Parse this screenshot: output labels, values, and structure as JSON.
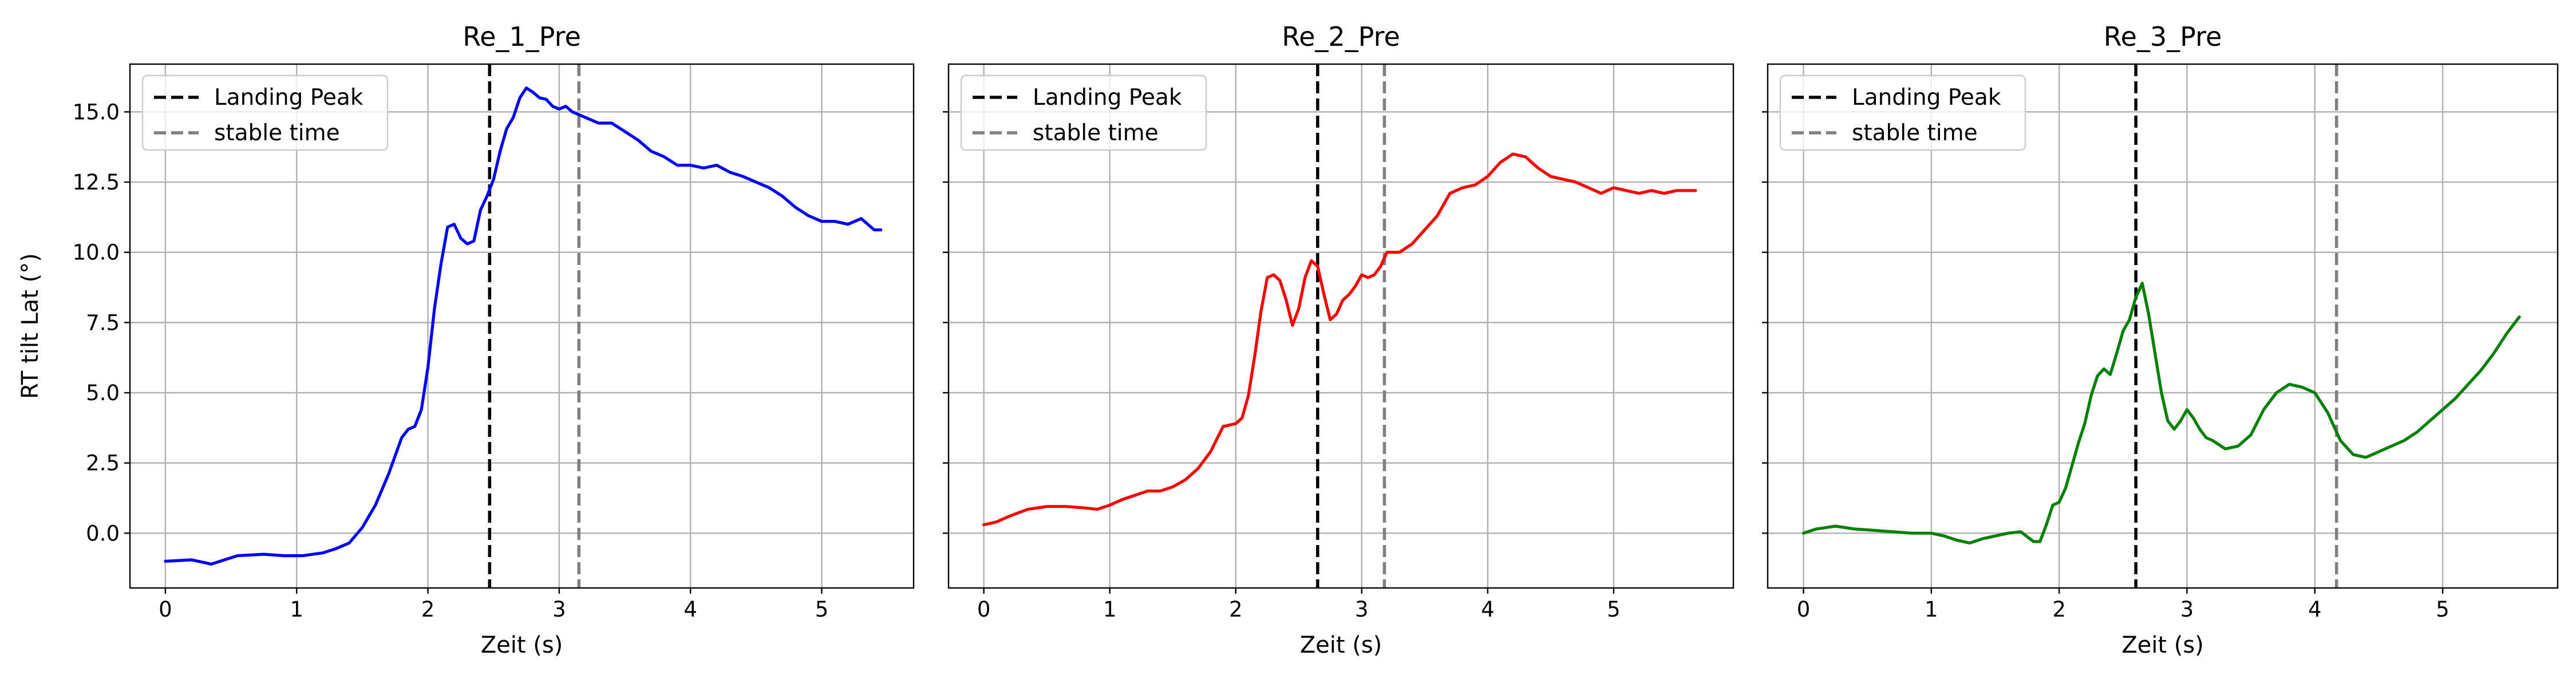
{
  "chart_data": [
    {
      "type": "line",
      "title": "Re_1_Pre",
      "xlabel": "Zeit (s)",
      "ylabel": "RT tilt Lat (°)",
      "xlim": [
        -0.27,
        5.7
      ],
      "ylim": [
        -1.95,
        16.7
      ],
      "xticks": [
        0,
        1,
        2,
        3,
        4,
        5
      ],
      "xtick_labels": [
        "0",
        "1",
        "2",
        "3",
        "4",
        "5"
      ],
      "yticks": [
        0.0,
        2.5,
        5.0,
        7.5,
        10.0,
        12.5,
        15.0
      ],
      "ytick_labels": [
        "0.0",
        "2.5",
        "5.0",
        "7.5",
        "10.0",
        "12.5",
        "15.0"
      ],
      "grid": true,
      "legend_position": "top-left",
      "series": [
        {
          "color": "#0000ff",
          "x": [
            0,
            0.2,
            0.35,
            0.45,
            0.55,
            0.75,
            0.9,
            1.05,
            1.2,
            1.3,
            1.4,
            1.5,
            1.6,
            1.7,
            1.8,
            1.85,
            1.9,
            1.95,
            2.0,
            2.05,
            2.1,
            2.15,
            2.2,
            2.25,
            2.3,
            2.35,
            2.4,
            2.45,
            2.5,
            2.55,
            2.6,
            2.65,
            2.7,
            2.75,
            2.8,
            2.85,
            2.9,
            2.95,
            3.0,
            3.05,
            3.1,
            3.2,
            3.3,
            3.4,
            3.5,
            3.6,
            3.7,
            3.8,
            3.9,
            4.0,
            4.1,
            4.2,
            4.3,
            4.4,
            4.5,
            4.6,
            4.7,
            4.8,
            4.9,
            5.0,
            5.1,
            5.2,
            5.3,
            5.4,
            5.45
          ],
          "y": [
            -1.0,
            -0.95,
            -1.1,
            -0.95,
            -0.8,
            -0.75,
            -0.8,
            -0.8,
            -0.7,
            -0.55,
            -0.35,
            0.2,
            1.0,
            2.1,
            3.4,
            3.7,
            3.8,
            4.4,
            5.9,
            8.0,
            9.6,
            10.9,
            11.0,
            10.5,
            10.3,
            10.4,
            11.5,
            12.0,
            12.6,
            13.6,
            14.4,
            14.8,
            15.5,
            15.85,
            15.7,
            15.5,
            15.45,
            15.2,
            15.1,
            15.2,
            15.0,
            14.8,
            14.6,
            14.6,
            14.3,
            14.0,
            13.6,
            13.4,
            13.1,
            13.1,
            13.0,
            13.1,
            12.85,
            12.7,
            12.5,
            12.3,
            12.0,
            11.6,
            11.3,
            11.1,
            11.1,
            11.0,
            11.2,
            10.8,
            10.8
          ]
        }
      ],
      "vlines": [
        {
          "x": 2.47,
          "color": "#000000",
          "label": "Landing Peak"
        },
        {
          "x": 3.15,
          "color": "#808080",
          "label": "stable time"
        }
      ]
    },
    {
      "type": "line",
      "title": "Re_2_Pre",
      "xlabel": "Zeit (s)",
      "ylabel": "",
      "xlim": [
        -0.28,
        5.95
      ],
      "ylim": [
        -1.95,
        16.7
      ],
      "xticks": [
        0,
        1,
        2,
        3,
        4,
        5
      ],
      "xtick_labels": [
        "0",
        "1",
        "2",
        "3",
        "4",
        "5"
      ],
      "yticks": [
        0.0,
        2.5,
        5.0,
        7.5,
        10.0,
        12.5,
        15.0
      ],
      "ytick_labels": [],
      "grid": true,
      "legend_position": "top-left",
      "series": [
        {
          "color": "#ff0000",
          "x": [
            0,
            0.1,
            0.2,
            0.35,
            0.5,
            0.65,
            0.8,
            0.9,
            1.0,
            1.1,
            1.2,
            1.3,
            1.4,
            1.5,
            1.6,
            1.7,
            1.8,
            1.9,
            2.0,
            2.05,
            2.1,
            2.15,
            2.2,
            2.25,
            2.3,
            2.35,
            2.4,
            2.45,
            2.5,
            2.55,
            2.6,
            2.65,
            2.7,
            2.75,
            2.8,
            2.85,
            2.9,
            2.95,
            3.0,
            3.05,
            3.1,
            3.15,
            3.2,
            3.3,
            3.4,
            3.5,
            3.6,
            3.7,
            3.8,
            3.9,
            4.0,
            4.1,
            4.2,
            4.3,
            4.4,
            4.5,
            4.6,
            4.7,
            4.8,
            4.9,
            5.0,
            5.1,
            5.2,
            5.3,
            5.4,
            5.5,
            5.6,
            5.65
          ],
          "y": [
            0.3,
            0.4,
            0.6,
            0.85,
            0.95,
            0.95,
            0.9,
            0.85,
            1.0,
            1.2,
            1.35,
            1.5,
            1.5,
            1.65,
            1.9,
            2.3,
            2.9,
            3.8,
            3.9,
            4.1,
            4.9,
            6.3,
            7.9,
            9.1,
            9.2,
            9.0,
            8.3,
            7.4,
            8.0,
            9.1,
            9.7,
            9.5,
            8.5,
            7.6,
            7.8,
            8.3,
            8.5,
            8.8,
            9.2,
            9.1,
            9.2,
            9.5,
            10.0,
            10.0,
            10.3,
            10.8,
            11.3,
            12.1,
            12.3,
            12.4,
            12.7,
            13.2,
            13.5,
            13.4,
            13.0,
            12.7,
            12.6,
            12.5,
            12.3,
            12.1,
            12.3,
            12.2,
            12.1,
            12.2,
            12.1,
            12.2,
            12.2,
            12.2
          ]
        }
      ],
      "vlines": [
        {
          "x": 2.65,
          "color": "#000000",
          "label": "Landing Peak"
        },
        {
          "x": 3.18,
          "color": "#808080",
          "label": "stable time"
        }
      ]
    },
    {
      "type": "line",
      "title": "Re_3_Pre",
      "xlabel": "Zeit (s)",
      "ylabel": "",
      "xlim": [
        -0.28,
        5.9
      ],
      "ylim": [
        -1.95,
        16.7
      ],
      "xticks": [
        0,
        1,
        2,
        3,
        4,
        5
      ],
      "xtick_labels": [
        "0",
        "1",
        "2",
        "3",
        "4",
        "5"
      ],
      "yticks": [
        0.0,
        2.5,
        5.0,
        7.5,
        10.0,
        12.5,
        15.0
      ],
      "ytick_labels": [],
      "grid": true,
      "legend_position": "top-left",
      "series": [
        {
          "color": "#008000",
          "x": [
            0,
            0.1,
            0.25,
            0.4,
            0.55,
            0.7,
            0.85,
            1.0,
            1.1,
            1.2,
            1.3,
            1.4,
            1.5,
            1.6,
            1.7,
            1.8,
            1.85,
            1.9,
            1.95,
            2.0,
            2.05,
            2.1,
            2.15,
            2.2,
            2.25,
            2.3,
            2.35,
            2.4,
            2.45,
            2.5,
            2.55,
            2.6,
            2.65,
            2.7,
            2.75,
            2.8,
            2.85,
            2.9,
            2.95,
            3.0,
            3.05,
            3.1,
            3.15,
            3.2,
            3.3,
            3.4,
            3.5,
            3.6,
            3.7,
            3.8,
            3.9,
            4.0,
            4.1,
            4.2,
            4.3,
            4.4,
            4.5,
            4.6,
            4.7,
            4.8,
            4.9,
            5.0,
            5.1,
            5.2,
            5.3,
            5.4,
            5.5,
            5.6
          ],
          "y": [
            0.0,
            0.15,
            0.25,
            0.15,
            0.1,
            0.05,
            0.0,
            0.0,
            -0.1,
            -0.25,
            -0.35,
            -0.2,
            -0.1,
            0.0,
            0.05,
            -0.3,
            -0.3,
            0.3,
            1.0,
            1.1,
            1.6,
            2.4,
            3.2,
            3.9,
            4.9,
            5.6,
            5.85,
            5.65,
            6.4,
            7.2,
            7.6,
            8.4,
            8.9,
            7.8,
            6.4,
            5.0,
            4.0,
            3.7,
            4.0,
            4.4,
            4.1,
            3.7,
            3.4,
            3.3,
            3.0,
            3.1,
            3.5,
            4.4,
            5.0,
            5.3,
            5.2,
            5.0,
            4.3,
            3.3,
            2.8,
            2.7,
            2.9,
            3.1,
            3.3,
            3.6,
            4.0,
            4.4,
            4.8,
            5.3,
            5.8,
            6.4,
            7.1,
            7.7
          ]
        }
      ],
      "vlines": [
        {
          "x": 2.6,
          "color": "#000000",
          "label": "Landing Peak"
        },
        {
          "x": 4.17,
          "color": "#808080",
          "label": "stable time"
        }
      ]
    }
  ]
}
